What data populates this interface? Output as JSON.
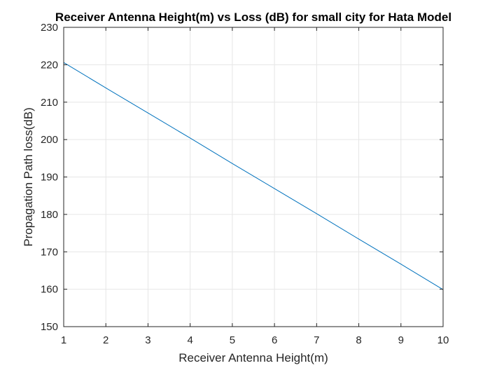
{
  "chart_data": {
    "type": "line",
    "title": "Receiver Antenna Height(m) vs Loss (dB) for small city for Hata Model",
    "xlabel": "Receiver Antenna Height(m)",
    "ylabel": "Propagation Path loss(dB)",
    "xlim": [
      1,
      10
    ],
    "ylim": [
      150,
      230
    ],
    "xticks": [
      1,
      2,
      3,
      4,
      5,
      6,
      7,
      8,
      9,
      10
    ],
    "yticks": [
      150,
      160,
      170,
      180,
      190,
      200,
      210,
      220,
      230
    ],
    "grid": true,
    "box": true,
    "series": [
      {
        "color": "#0072BD",
        "x": [
          1,
          2,
          3,
          4,
          5,
          6,
          7,
          8,
          9,
          10
        ],
        "values": [
          220.6,
          213.8,
          207.1,
          200.4,
          193.6,
          186.9,
          180.2,
          173.4,
          166.7,
          159.9
        ]
      }
    ]
  }
}
